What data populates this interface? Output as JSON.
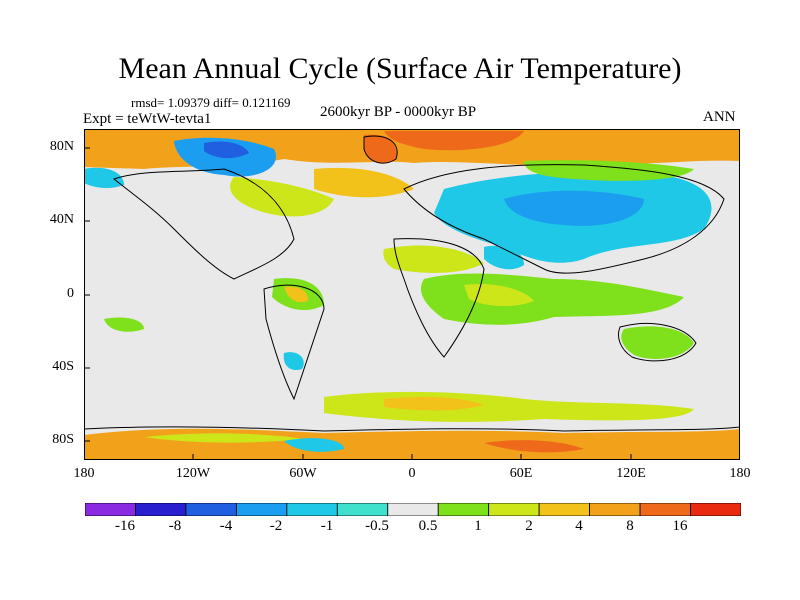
{
  "title": "Mean Annual Cycle (Surface Air Temperature)",
  "stats": "rmsd= 1.09379 diff= 0.121169",
  "experiment": "Expt = teWtW-tevta1",
  "period": "2600kyr BP - 0000kyr BP",
  "season": "ANN",
  "y_axis": {
    "ticks": [
      "80N",
      "40N",
      "0",
      "40S",
      "80S"
    ]
  },
  "x_axis": {
    "ticks": [
      "180",
      "120W",
      "60W",
      "0",
      "60E",
      "120E",
      "180"
    ]
  },
  "colorbar": {
    "labels": [
      "-16",
      "-8",
      "-4",
      "-2",
      "-1",
      "-0.5",
      "0.5",
      "1",
      "2",
      "4",
      "8",
      "16"
    ],
    "colors": [
      "#8a2be2",
      "#2a1fcf",
      "#1f5fe0",
      "#1b9ef0",
      "#1fc8e6",
      "#3fe0cc",
      "#e9e9e9",
      "#7fe01c",
      "#cce61a",
      "#f2c21a",
      "#f2a21a",
      "#ee6a1a",
      "#ea2a10"
    ]
  }
}
